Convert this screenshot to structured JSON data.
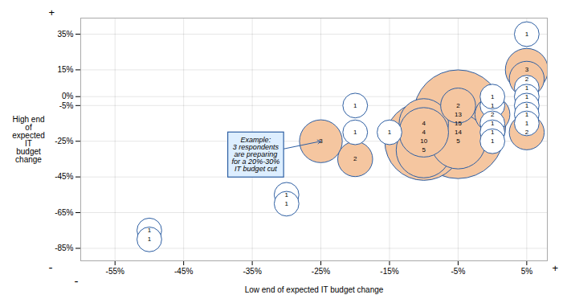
{
  "chart_data": {
    "type": "scatter",
    "title": "",
    "xlabel": "Low end of expected IT budget change",
    "ylabel": "High end\nof\nexpected\nIT\nbudget\nchange",
    "xlim": [
      -0.6,
      0.08
    ],
    "ylim": [
      -0.92,
      0.44
    ],
    "xticks": [
      {
        "value": -0.55,
        "label": "-55%"
      },
      {
        "value": -0.45,
        "label": "-45%"
      },
      {
        "value": -0.35,
        "label": "-35%"
      },
      {
        "value": -0.25,
        "label": "-25%"
      },
      {
        "value": -0.15,
        "label": "-15%"
      },
      {
        "value": -0.05,
        "label": "-5%"
      },
      {
        "value": 0.05,
        "label": "5%"
      }
    ],
    "yticks": [
      {
        "value": -0.85,
        "label": "-85%"
      },
      {
        "value": -0.65,
        "label": "-65%"
      },
      {
        "value": -0.45,
        "label": "-45%"
      },
      {
        "value": -0.25,
        "label": "-25%"
      },
      {
        "value": -0.05,
        "label": "-5%"
      },
      {
        "value": 0,
        "label": "0%"
      },
      {
        "value": 0.15,
        "label": "15%"
      },
      {
        "value": 0.35,
        "label": "35%"
      }
    ],
    "grid": true,
    "marker": "circle",
    "data_labels": true,
    "edge_color": "#2e5fa3",
    "x": [
      -0.5,
      -0.5,
      -0.3,
      -0.3,
      -0.25,
      -0.2,
      -0.2,
      -0.2,
      -0.15,
      -0.1,
      -0.1,
      -0.1,
      -0.1,
      -0.05,
      -0.05,
      -0.05,
      -0.05,
      -0.05,
      0,
      0,
      0,
      0,
      0,
      0,
      0.05,
      0.05,
      0.05,
      0.05,
      0.05,
      0.05,
      0.05,
      0.05,
      0.05
    ],
    "y": [
      -0.75,
      -0.8,
      -0.55,
      -0.6,
      -0.25,
      -0.05,
      -0.2,
      -0.35,
      -0.2,
      -0.15,
      -0.2,
      -0.25,
      -0.3,
      -0.1,
      -0.15,
      -0.2,
      -0.25,
      -0.05,
      -0.05,
      -0.1,
      -0.15,
      -0.2,
      0,
      -0.25,
      0.35,
      0.15,
      0.1,
      0.05,
      0,
      -0.05,
      -0.1,
      -0.15,
      -0.2
    ],
    "sizes": [
      1,
      1,
      1,
      1,
      3,
      1,
      1,
      2,
      1,
      4,
      4,
      10,
      5,
      13,
      15,
      14,
      5,
      2,
      1,
      2,
      1,
      1,
      1,
      1,
      1,
      3,
      2,
      1,
      1,
      1,
      1,
      1,
      2
    ],
    "colors": [
      "white",
      "white",
      "white",
      "white",
      "#f5c6a0",
      "white",
      "white",
      "#f5c6a0",
      "white",
      "#f5c6a0",
      "#f5c6a0",
      "#f5c6a0",
      "#f5c6a0",
      "#f5c6a0",
      "#f5c6a0",
      "#f5c6a0",
      "#f5c6a0",
      "#f5c6a0",
      "white",
      "#f5c6a0",
      "white",
      "white",
      "white",
      "white",
      "white",
      "#f5c6a0",
      "#f5c6a0",
      "white",
      "white",
      "white",
      "white",
      "white",
      "#f5c6a0"
    ],
    "annotations": [
      {
        "text": "Example:\n3 respondents\nare preparing\nfor a 20%-30%\nIT budget cut",
        "x": -0.345,
        "y": -0.325,
        "arrow_x": -0.25,
        "arrow_y": -0.25,
        "box_fill": "#ddeeff",
        "box_edge": "#2e5fa3"
      }
    ],
    "axis_signs": {
      "y_top": "+",
      "y_bottom": "-",
      "x_right": "+",
      "x_left": "-"
    }
  }
}
